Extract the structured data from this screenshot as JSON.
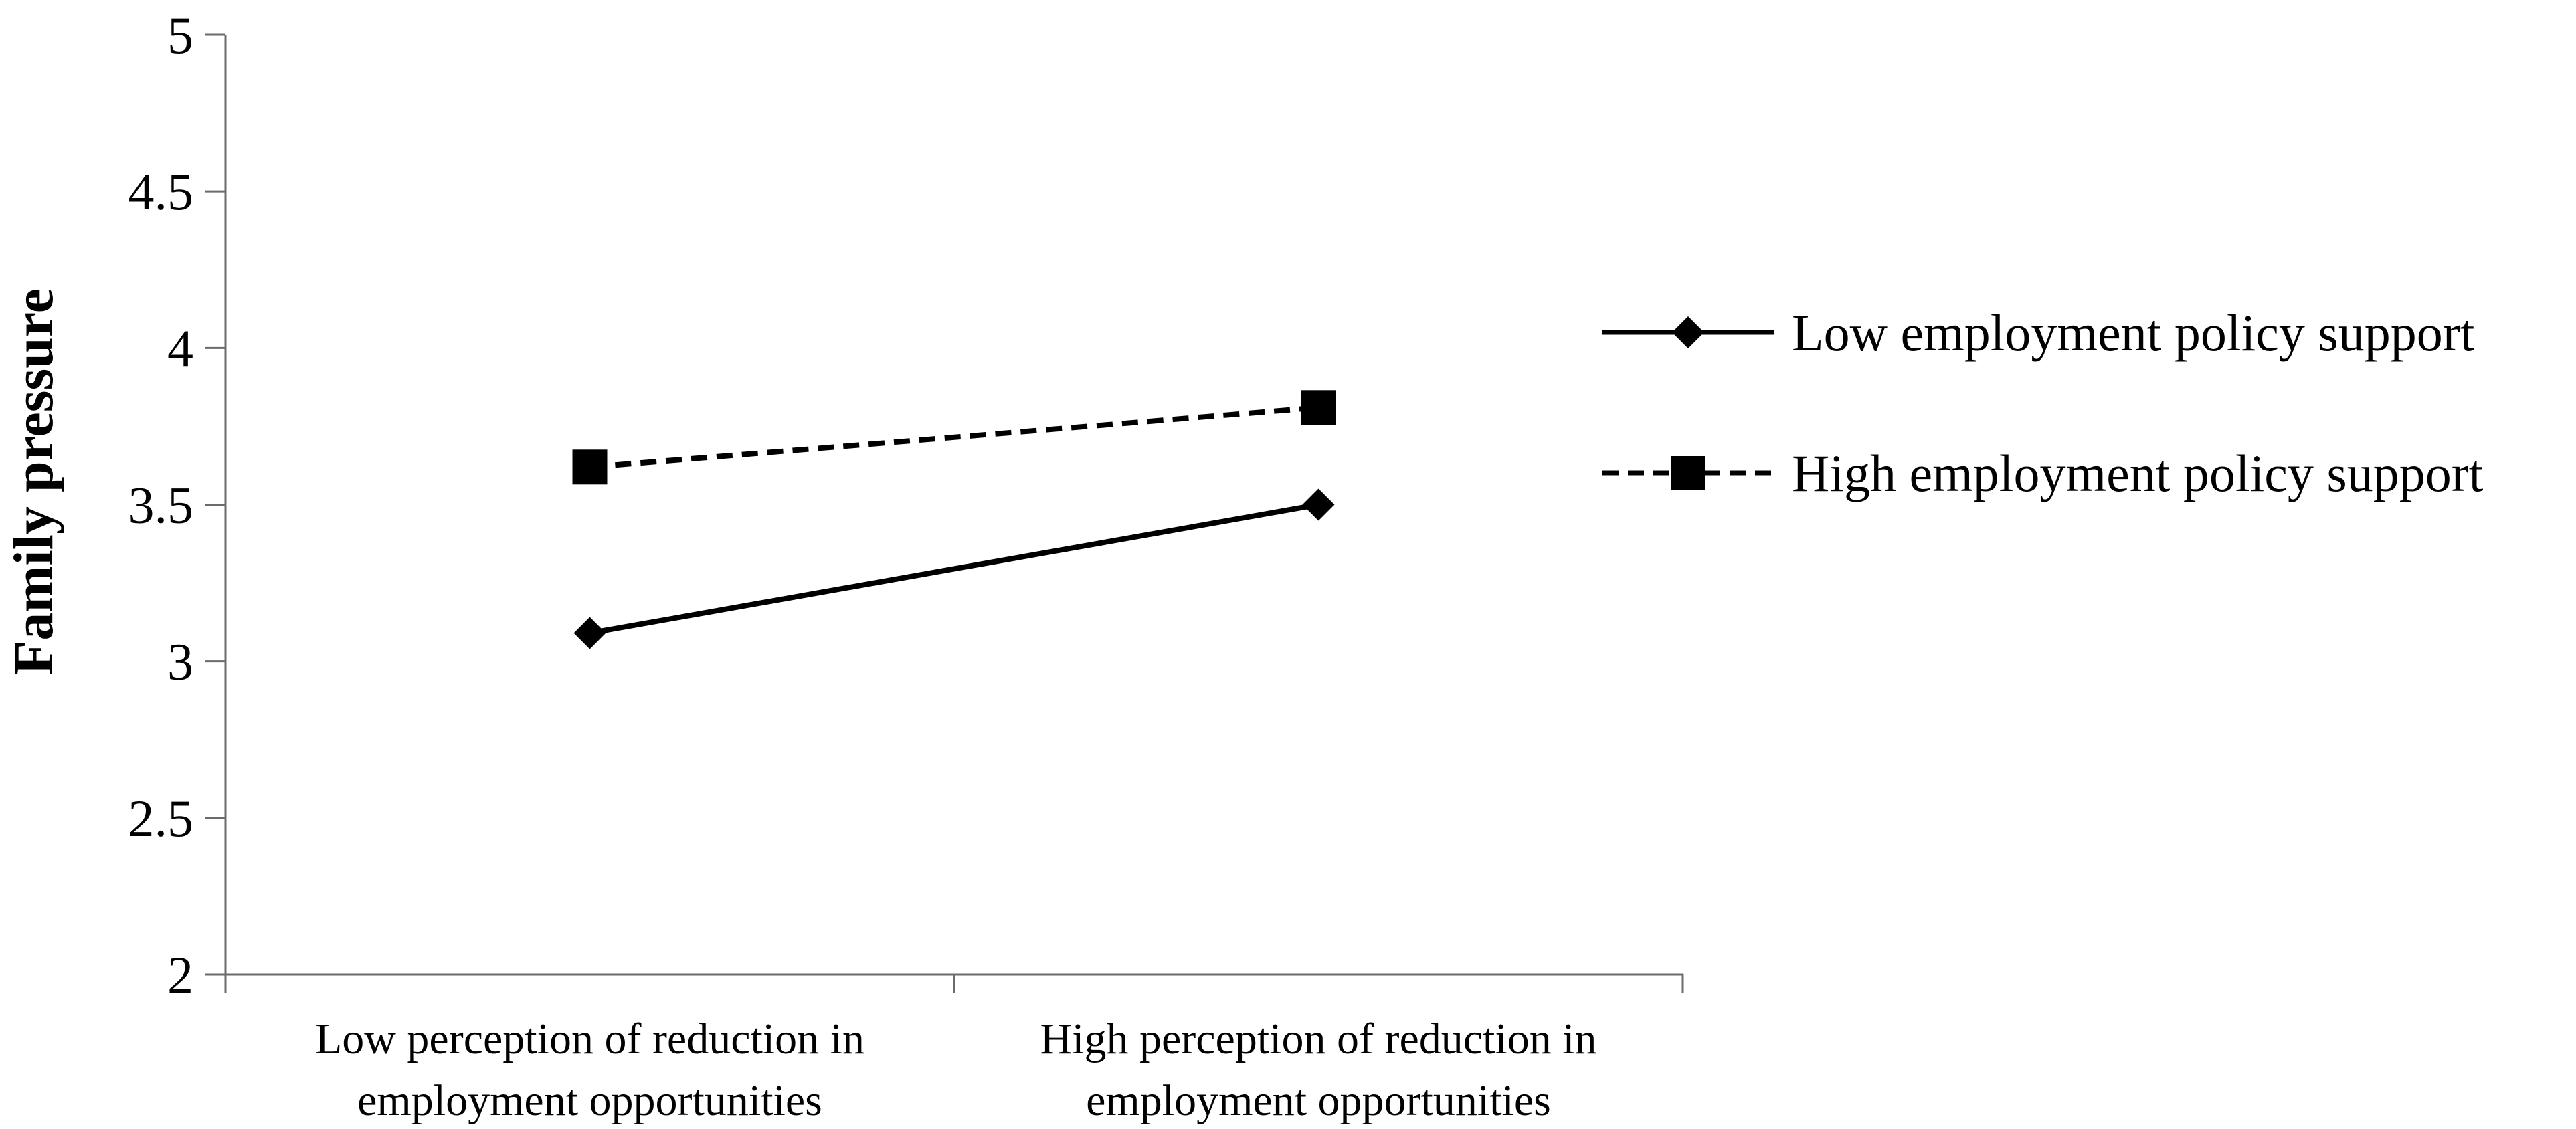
{
  "chart_data": {
    "type": "line",
    "title": "",
    "xlabel": "",
    "ylabel": "Family pressure",
    "ylim": [
      2,
      5
    ],
    "yticks": [
      "2",
      "2.5",
      "3",
      "3.5",
      "4",
      "4.5",
      "5"
    ],
    "categories": [
      [
        "Low perception of reduction in",
        "employment opportunities"
      ],
      [
        "High perception of reduction in",
        "employment opportunities"
      ]
    ],
    "series": [
      {
        "name": "Low employment policy support",
        "values": [
          3.09,
          3.5
        ],
        "line_style": "solid",
        "marker": "diamond",
        "color": "#000000"
      },
      {
        "name": "High employment policy support",
        "values": [
          3.62,
          3.81
        ],
        "line_style": "dashed",
        "marker": "square",
        "color": "#000000"
      }
    ],
    "grid": false,
    "legend_position": "right"
  }
}
